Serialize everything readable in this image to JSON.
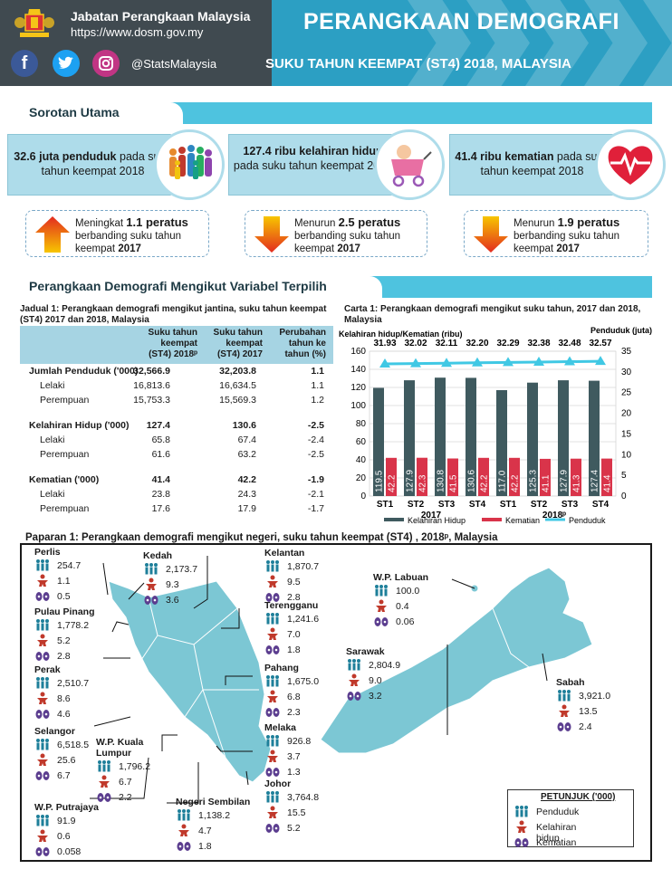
{
  "header": {
    "org_name": "Jabatan Perangkaan Malaysia",
    "url": "https://www.dosm.gov.my",
    "social_handle": "@StatsMalaysia",
    "title": "PERANGKAAN DEMOGRAFI",
    "subtitle": "SUKU TAHUN KEEMPAT (ST4) 2018, MALAYSIA"
  },
  "highlights": {
    "section_title": "Sorotan Utama",
    "pop": {
      "bold": "32.6 juta penduduk",
      "rest": " pada suku tahun keempat 2018"
    },
    "births": {
      "bold": "127.4 ribu kelahiran hidup",
      "rest": " pada suku tahun keempat 2018"
    },
    "deaths": {
      "bold": "41.4 ribu kematian",
      "rest": " pada suku tahun keempat 2018"
    },
    "pop_cmp": {
      "word": "Meningkat ",
      "value": "1.1 peratus",
      "line2": "berbanding suku tahun",
      "line3": "keempat ",
      "year": "2017"
    },
    "births_cmp": {
      "word": "Menurun ",
      "value": "2.5 peratus",
      "line2": "berbanding suku tahun",
      "line3": "keempat ",
      "year": "2017"
    },
    "deaths_cmp": {
      "word": "Menurun ",
      "value": "1.9 peratus",
      "line2": "berbanding suku tahun",
      "line3": "keempat ",
      "year": "2017"
    }
  },
  "section2_title": "Perangkaan Demografi Mengikut Variabel Terpilih",
  "table": {
    "title": "Jadual 1: Perangkaan demografi mengikut jantina, suku tahun keempat (ST4) 2017 dan 2018, Malaysia",
    "h2": [
      "Suku tahun",
      "keempat",
      "(ST4)  2018ᵖ"
    ],
    "h3": [
      "Suku tahun",
      "keempat",
      "(ST4) 2017"
    ],
    "h4": [
      "Perubahan",
      "tahun ke",
      "tahun (%)"
    ],
    "rows": [
      {
        "label": "Jumlah Penduduk ('000)",
        "v2018": "32,566.9",
        "v2017": "32,203.8",
        "chg": "1.1"
      },
      {
        "label": "Lelaki",
        "v2018": "16,813.6",
        "v2017": "16,634.5",
        "chg": "1.1"
      },
      {
        "label": "Perempuan",
        "v2018": "15,753.3",
        "v2017": "15,569.3",
        "chg": "1.2"
      },
      {
        "label": "Kelahiran Hidup ('000)",
        "v2018": "127.4",
        "v2017": "130.6",
        "chg": "-2.5"
      },
      {
        "label": "Lelaki",
        "v2018": "65.8",
        "v2017": "67.4",
        "chg": "-2.4"
      },
      {
        "label": "Perempuan",
        "v2018": "61.6",
        "v2017": "63.2",
        "chg": "-2.5"
      },
      {
        "label": "Kematian ('000)",
        "v2018": "41.4",
        "v2017": "42.2",
        "chg": "-1.9"
      },
      {
        "label": "Lelaki",
        "v2018": "23.8",
        "v2017": "24.3",
        "chg": "-2.1"
      },
      {
        "label": "Perempuan",
        "v2018": "17.6",
        "v2017": "17.9",
        "chg": "-1.7"
      }
    ]
  },
  "chart_data": {
    "type": "bar",
    "title": "Carta 1: Perangkaan demografi mengikut suku tahun, 2017 dan 2018, Malaysia",
    "ylabel_left": "Kelahiran hidup/Kematian (ribu)",
    "ylabel_right": "Penduduk (juta)",
    "categories": [
      "ST1",
      "ST2",
      "ST3",
      "ST4",
      "ST1",
      "ST2",
      "ST3",
      "ST4"
    ],
    "years": [
      "2017",
      "2018ᵖ"
    ],
    "ylim_left": [
      0,
      160
    ],
    "yticks_left": [
      0,
      20,
      40,
      60,
      80,
      100,
      120,
      140,
      160
    ],
    "ylim_right": [
      0,
      35
    ],
    "yticks_right": [
      0,
      5,
      10,
      15,
      20,
      25,
      30,
      35
    ],
    "series": [
      {
        "name": "Kelahiran Hidup",
        "axis": "left",
        "color": "#3f5a5f",
        "values": [
          119.5,
          127.9,
          130.8,
          130.6,
          117.0,
          125.3,
          127.9,
          127.4
        ],
        "labels": [
          "119.5",
          "127.9",
          "130.8",
          "130.6",
          "117.0",
          "125.3",
          "127.9",
          "127.4"
        ]
      },
      {
        "name": "Kematian",
        "axis": "left",
        "color": "#d9344a",
        "values": [
          42.2,
          42.3,
          41.5,
          42.2,
          42.2,
          41.1,
          41.3,
          41.4
        ],
        "labels": [
          "42.2",
          "42.3",
          "41.5",
          "42.2",
          "42.2",
          "41.1",
          "41.3",
          "41.4"
        ]
      },
      {
        "name": "Penduduk",
        "axis": "right",
        "color": "#40c8e4",
        "values": [
          31.93,
          32.02,
          32.11,
          32.2,
          32.29,
          32.38,
          32.48,
          32.57
        ],
        "labels": [
          "31.93",
          "32.02",
          "32.11",
          "32.20",
          "32.29",
          "32.38",
          "32.48",
          "32.57"
        ]
      }
    ],
    "legend_position": "bottom"
  },
  "map": {
    "title": "Paparan 1: Perangkaan demografi mengikut negeri, suku tahun keempat (ST4) , 2018ᵖ, Malaysia",
    "states": [
      {
        "name": "Perlis",
        "pop": "254.7",
        "births": "1.1",
        "deaths": "0.5"
      },
      {
        "name": "Kedah",
        "pop": "2,173.7",
        "births": "9.3",
        "deaths": "3.6"
      },
      {
        "name": "Kelantan",
        "pop": "1,870.7",
        "births": "9.5",
        "deaths": "2.8"
      },
      {
        "name": "Pulau Pinang",
        "pop": "1,778.2",
        "births": "5.2",
        "deaths": "2.8"
      },
      {
        "name": "Terengganu",
        "pop": "1,241.6",
        "births": "7.0",
        "deaths": "1.8"
      },
      {
        "name": "Perak",
        "pop": "2,510.7",
        "births": "8.6",
        "deaths": "4.6"
      },
      {
        "name": "Pahang",
        "pop": "1,675.0",
        "births": "6.8",
        "deaths": "2.3"
      },
      {
        "name": "Selangor",
        "pop": "6,518.5",
        "births": "25.6",
        "deaths": "6.7"
      },
      {
        "name": "W.P. Kuala Lumpur",
        "pop": "1,796.2",
        "births": "6.7",
        "deaths": "2.2"
      },
      {
        "name": "Melaka",
        "pop": "926.8",
        "births": "3.7",
        "deaths": "1.3"
      },
      {
        "name": "Johor",
        "pop": "3,764.8",
        "births": "15.5",
        "deaths": "5.2"
      },
      {
        "name": "Negeri Sembilan",
        "pop": "1,138.2",
        "births": "4.7",
        "deaths": "1.8"
      },
      {
        "name": "W.P. Putrajaya",
        "pop": "91.9",
        "births": "0.6",
        "deaths": "0.058"
      },
      {
        "name": "W.P. Labuan",
        "pop": "100.0",
        "births": "0.4",
        "deaths": "0.06"
      },
      {
        "name": "Sarawak",
        "pop": "2,804.9",
        "births": "9.0",
        "deaths": "3.2"
      },
      {
        "name": "Sabah",
        "pop": "3,921.0",
        "births": "13.5",
        "deaths": "2.4"
      }
    ],
    "legend": {
      "title": "PETUNJUK ('000)",
      "pop": "Penduduk",
      "births": "Kelahiran hidup",
      "deaths": "Kematian"
    }
  }
}
